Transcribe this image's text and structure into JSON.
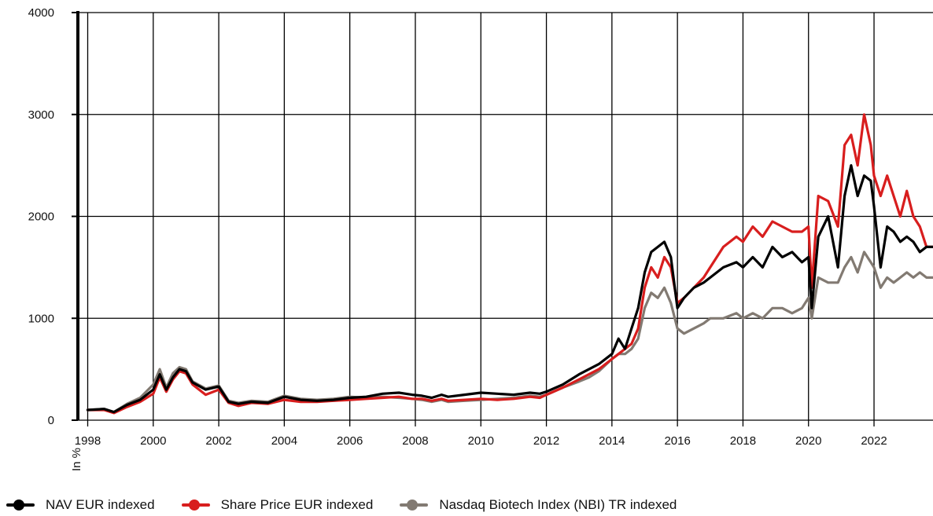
{
  "chart_data": {
    "type": "line",
    "ylabel": "In %",
    "ylim": [
      0,
      4000
    ],
    "yticks": [
      0,
      1000,
      2000,
      3000,
      4000
    ],
    "xlim": [
      1997.7,
      2023.8
    ],
    "xticks": [
      1998,
      2000,
      2002,
      2004,
      2006,
      2008,
      2010,
      2012,
      2014,
      2016,
      2018,
      2020,
      2022
    ],
    "grid": true,
    "legend_position": "bottom",
    "series": [
      {
        "name": "NAV EUR indexed",
        "color": "#000000",
        "x": [
          1998.0,
          1998.5,
          1998.8,
          1999.2,
          1999.6,
          2000.0,
          2000.2,
          2000.4,
          2000.6,
          2000.8,
          2001.0,
          2001.2,
          2001.6,
          2002.0,
          2002.3,
          2002.6,
          2003.0,
          2003.5,
          2004.0,
          2004.5,
          2005.0,
          2005.5,
          2006.0,
          2006.5,
          2007.0,
          2007.5,
          2007.9,
          2008.2,
          2008.5,
          2008.8,
          2009.0,
          2009.5,
          2010.0,
          2010.5,
          2011.0,
          2011.5,
          2011.8,
          2012.0,
          2012.5,
          2013.0,
          2013.3,
          2013.6,
          2014.0,
          2014.2,
          2014.4,
          2014.6,
          2014.8,
          2015.0,
          2015.2,
          2015.4,
          2015.6,
          2015.8,
          2016.0,
          2016.2,
          2016.5,
          2016.8,
          2017.0,
          2017.4,
          2017.8,
          2018.0,
          2018.3,
          2018.6,
          2018.9,
          2019.2,
          2019.5,
          2019.8,
          2020.0,
          2020.1,
          2020.3,
          2020.6,
          2020.9,
          2021.1,
          2021.3,
          2021.5,
          2021.7,
          2021.9,
          2022.0,
          2022.2,
          2022.4,
          2022.6,
          2022.8,
          2023.0,
          2023.2,
          2023.4,
          2023.6,
          2023.8
        ],
        "values": [
          100,
          110,
          80,
          150,
          200,
          300,
          450,
          300,
          420,
          500,
          480,
          370,
          300,
          330,
          180,
          160,
          180,
          170,
          230,
          200,
          190,
          200,
          220,
          230,
          260,
          270,
          250,
          240,
          220,
          250,
          230,
          250,
          270,
          260,
          250,
          270,
          260,
          280,
          350,
          450,
          500,
          550,
          650,
          800,
          700,
          900,
          1100,
          1450,
          1650,
          1700,
          1750,
          1600,
          1100,
          1200,
          1300,
          1350,
          1400,
          1500,
          1550,
          1500,
          1600,
          1500,
          1700,
          1600,
          1650,
          1550,
          1600,
          1100,
          1800,
          2000,
          1500,
          2200,
          2500,
          2200,
          2400,
          2350,
          2100,
          1500,
          1900,
          1850,
          1750,
          1800,
          1750,
          1650,
          1700,
          1700
        ]
      },
      {
        "name": "Share Price EUR indexed",
        "color": "#d81e1e",
        "x": [
          1998.0,
          1998.5,
          1998.8,
          1999.2,
          1999.6,
          2000.0,
          2000.2,
          2000.4,
          2000.6,
          2000.8,
          2001.0,
          2001.2,
          2001.6,
          2002.0,
          2002.3,
          2002.6,
          2003.0,
          2003.5,
          2004.0,
          2004.5,
          2005.0,
          2005.5,
          2006.0,
          2006.5,
          2007.0,
          2007.5,
          2007.9,
          2008.2,
          2008.5,
          2008.8,
          2009.0,
          2009.5,
          2010.0,
          2010.5,
          2011.0,
          2011.5,
          2011.8,
          2012.0,
          2012.5,
          2013.0,
          2013.3,
          2013.6,
          2014.0,
          2014.2,
          2014.4,
          2014.6,
          2014.8,
          2015.0,
          2015.2,
          2015.4,
          2015.6,
          2015.8,
          2016.0,
          2016.2,
          2016.5,
          2016.8,
          2017.0,
          2017.4,
          2017.8,
          2018.0,
          2018.3,
          2018.6,
          2018.9,
          2019.2,
          2019.5,
          2019.8,
          2020.0,
          2020.1,
          2020.3,
          2020.6,
          2020.9,
          2021.1,
          2021.3,
          2021.5,
          2021.7,
          2021.9,
          2022.0,
          2022.2,
          2022.4,
          2022.6,
          2022.8,
          2023.0,
          2023.2,
          2023.4,
          2023.6,
          2023.8
        ],
        "values": [
          100,
          100,
          70,
          130,
          180,
          260,
          420,
          280,
          400,
          480,
          460,
          350,
          250,
          300,
          170,
          140,
          170,
          160,
          200,
          180,
          180,
          190,
          200,
          210,
          220,
          230,
          210,
          210,
          190,
          210,
          190,
          200,
          210,
          200,
          210,
          230,
          220,
          250,
          320,
          400,
          450,
          500,
          600,
          650,
          700,
          750,
          900,
          1300,
          1500,
          1400,
          1600,
          1500,
          1150,
          1200,
          1300,
          1400,
          1500,
          1700,
          1800,
          1750,
          1900,
          1800,
          1950,
          1900,
          1850,
          1850,
          1900,
          1300,
          2200,
          2150,
          1900,
          2700,
          2800,
          2500,
          3000,
          2700,
          2400,
          2200,
          2400,
          2200,
          2000,
          2250,
          2000,
          1900,
          1700,
          1700
        ]
      },
      {
        "name": "Nasdaq Biotech Index (NBI) TR indexed",
        "color": "#827a72",
        "x": [
          1998.0,
          1998.5,
          1998.8,
          1999.2,
          1999.6,
          2000.0,
          2000.2,
          2000.4,
          2000.6,
          2000.8,
          2001.0,
          2001.2,
          2001.6,
          2002.0,
          2002.3,
          2002.6,
          2003.0,
          2003.5,
          2004.0,
          2004.5,
          2005.0,
          2005.5,
          2006.0,
          2006.5,
          2007.0,
          2007.5,
          2007.9,
          2008.2,
          2008.5,
          2008.8,
          2009.0,
          2009.5,
          2010.0,
          2010.5,
          2011.0,
          2011.5,
          2011.8,
          2012.0,
          2012.5,
          2013.0,
          2013.3,
          2013.6,
          2014.0,
          2014.2,
          2014.4,
          2014.6,
          2014.8,
          2015.0,
          2015.2,
          2015.4,
          2015.6,
          2015.8,
          2016.0,
          2016.2,
          2016.5,
          2016.8,
          2017.0,
          2017.4,
          2017.8,
          2018.0,
          2018.3,
          2018.6,
          2018.9,
          2019.2,
          2019.5,
          2019.8,
          2020.0,
          2020.1,
          2020.3,
          2020.6,
          2020.9,
          2021.1,
          2021.3,
          2021.5,
          2021.7,
          2021.9,
          2022.0,
          2022.2,
          2022.4,
          2022.6,
          2022.8,
          2023.0,
          2023.2,
          2023.4,
          2023.6,
          2023.8
        ],
        "values": [
          100,
          110,
          80,
          160,
          220,
          350,
          500,
          320,
          460,
          520,
          500,
          380,
          310,
          340,
          190,
          170,
          190,
          180,
          240,
          210,
          200,
          210,
          230,
          220,
          230,
          220,
          210,
          200,
          180,
          200,
          180,
          190,
          200,
          210,
          220,
          240,
          230,
          250,
          320,
          380,
          420,
          480,
          600,
          650,
          650,
          700,
          800,
          1100,
          1250,
          1200,
          1300,
          1150,
          900,
          850,
          900,
          950,
          1000,
          1000,
          1050,
          1000,
          1050,
          1000,
          1100,
          1100,
          1050,
          1100,
          1200,
          1000,
          1400,
          1350,
          1350,
          1500,
          1600,
          1450,
          1650,
          1550,
          1500,
          1300,
          1400,
          1350,
          1400,
          1450,
          1400,
          1450,
          1400,
          1400
        ]
      }
    ]
  }
}
